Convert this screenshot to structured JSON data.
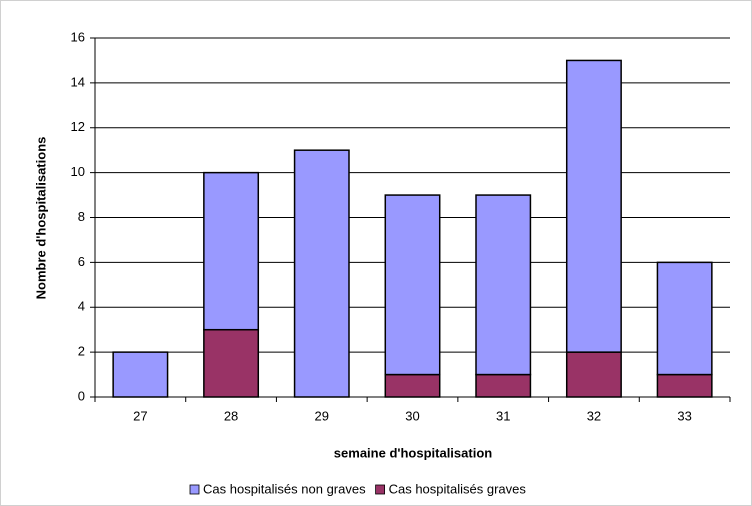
{
  "chart_data": {
    "type": "stacked_bar",
    "x_label": "semaine d'hospitalisation",
    "y_label": "Nombre d'hospitalisations",
    "categories": [
      "27",
      "28",
      "29",
      "30",
      "31",
      "32",
      "33"
    ],
    "series": [
      {
        "name": "Cas hospitalisés non graves",
        "color": "#9999ff",
        "values": [
          2,
          7,
          11,
          8,
          8,
          13,
          5
        ]
      },
      {
        "name": "Cas hospitalisés graves",
        "color": "#993366",
        "values": [
          0,
          3,
          0,
          1,
          1,
          2,
          1
        ]
      }
    ],
    "ylim": [
      0,
      16
    ],
    "yticks": [
      0,
      2,
      4,
      6,
      8,
      10,
      12,
      14,
      16
    ],
    "grid": true,
    "legend": "bottom"
  }
}
